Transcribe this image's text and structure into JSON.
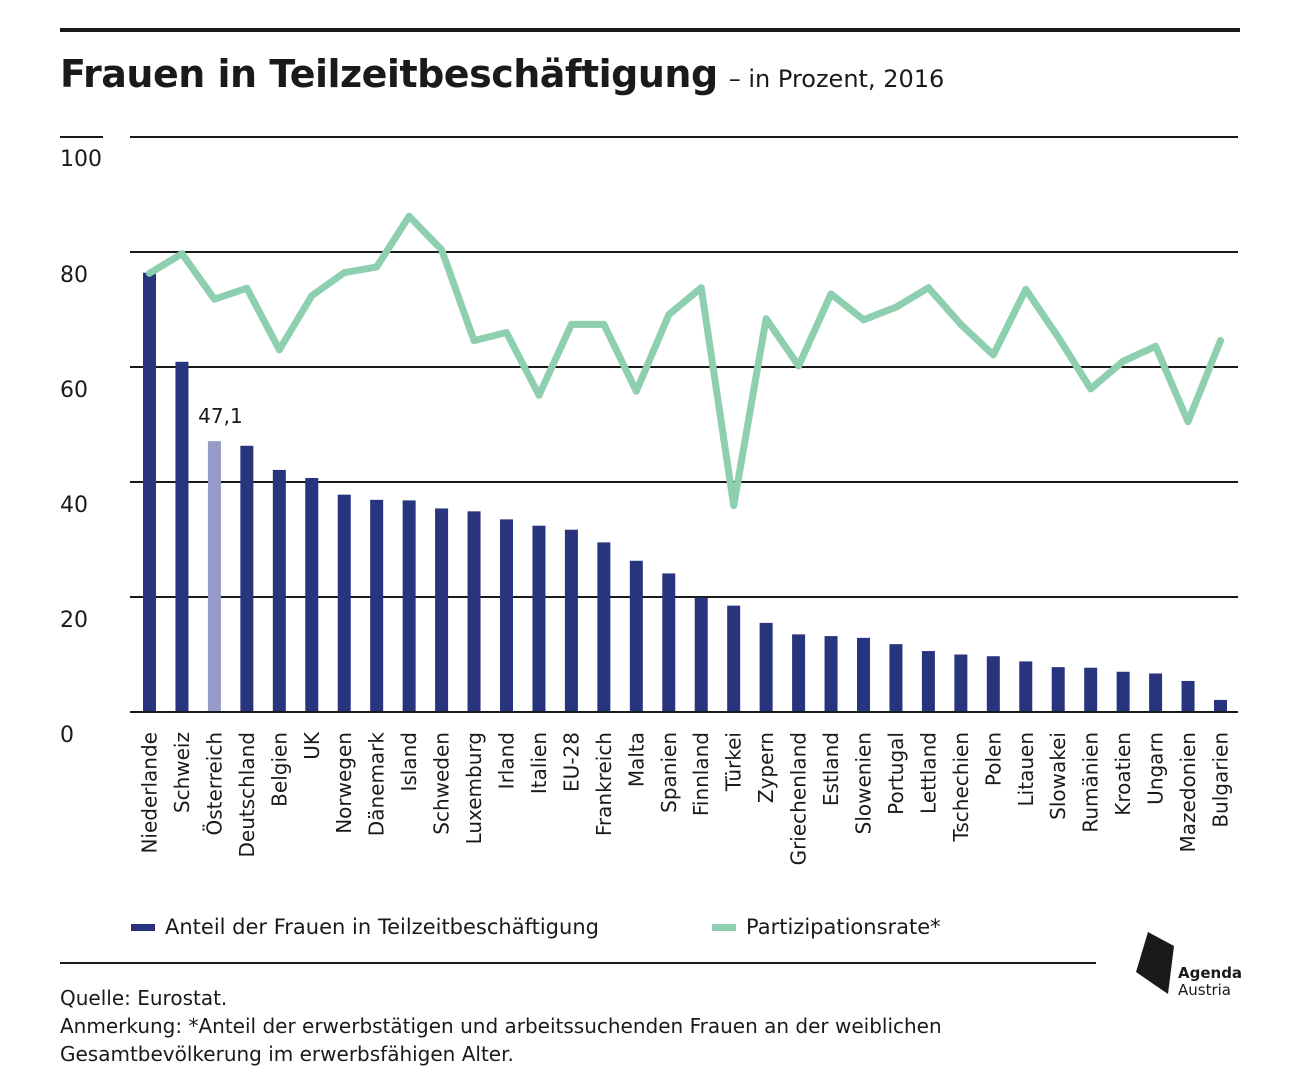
{
  "header": {
    "title": "Frauen in Teilzeitbeschäftigung",
    "subtitle": "– in Prozent, 2016"
  },
  "chart_data": {
    "type": "bar",
    "ylim": [
      0,
      100
    ],
    "yticks": [
      0,
      20,
      40,
      60,
      80,
      100
    ],
    "grid": true,
    "categories": [
      "Niederlande",
      "Schweiz",
      "Österreich",
      "Deutschland",
      "Belgien",
      "UK",
      "Norwegen",
      "Dänemark",
      "Island",
      "Schweden",
      "Luxemburg",
      "Irland",
      "Italien",
      "EU-28",
      "Frankreich",
      "Malta",
      "Spanien",
      "Finnland",
      "Türkei",
      "Zypern",
      "Griechenland",
      "Estland",
      "Slowenien",
      "Portugal",
      "Lettland",
      "Tschechien",
      "Polen",
      "Litauen",
      "Slowakei",
      "Rumänien",
      "Kroatien",
      "Ungarn",
      "Mazedonien",
      "Bulgarien"
    ],
    "series": [
      {
        "name": "Anteil der Frauen in Teilzeitbeschäftigung",
        "kind": "bar",
        "color": "#28347e",
        "highlight_color": "#949bc7",
        "highlight_index": 2,
        "values": [
          76.4,
          60.9,
          47.1,
          46.3,
          42.1,
          40.7,
          37.8,
          36.9,
          36.8,
          35.4,
          34.9,
          33.5,
          32.4,
          31.7,
          29.5,
          26.3,
          24.1,
          19.9,
          18.5,
          15.5,
          13.5,
          13.2,
          12.9,
          11.8,
          10.6,
          10.0,
          9.7,
          8.8,
          7.8,
          7.7,
          7.0,
          6.7,
          5.4,
          2.1
        ],
        "labels": {
          "2": "47,1"
        }
      },
      {
        "name": "Partizipationsrate*",
        "kind": "line",
        "color": "#8ecfaf",
        "values": [
          76.3,
          79.7,
          71.8,
          73.7,
          63.0,
          72.4,
          76.4,
          77.4,
          86.2,
          80.4,
          64.6,
          66.0,
          55.1,
          67.4,
          67.4,
          55.8,
          69.1,
          73.8,
          35.9,
          68.4,
          60.2,
          72.7,
          68.2,
          70.4,
          73.8,
          67.4,
          62.1,
          73.5,
          65.2,
          56.2,
          61.0,
          63.6,
          50.5,
          64.6
        ]
      }
    ]
  },
  "legend": {
    "bar_label": "Anteil der Frauen in Teilzeitbeschäftigung",
    "line_label": "Partizipationsrate*"
  },
  "footer": {
    "source": "Quelle: Eurostat.",
    "note_line1": "Anmerkung: *Anteil der erwerbstätigen und arbeitssuchenden Frauen an der weiblichen",
    "note_line2": "Gesamtbevölkerung im erwerbsfähigen Alter."
  },
  "logo": {
    "name": "agenda-austria-logo",
    "line1": "Agenda",
    "line2": "Austria"
  }
}
